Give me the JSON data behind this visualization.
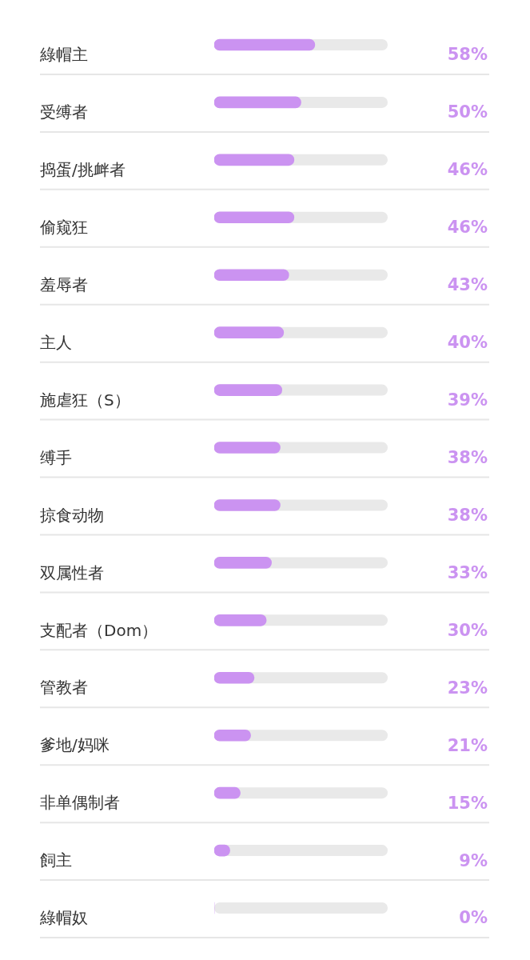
{
  "chart_data": {
    "type": "bar",
    "orientation": "horizontal",
    "categories": [
      "綠帽主",
      "受缚者",
      "捣蛋/挑衅者",
      "偷窥狂",
      "羞辱者",
      "主人",
      "施虐狂（S）",
      "缚手",
      "掠食动物",
      "双属性者",
      "支配者（Dom）",
      "管教者",
      "爹地/妈咪",
      "非单偶制者",
      "飼主",
      "綠帽奴"
    ],
    "values": [
      58,
      50,
      46,
      46,
      43,
      40,
      39,
      38,
      38,
      33,
      30,
      23,
      21,
      15,
      9,
      0
    ],
    "value_labels": [
      "58%",
      "50%",
      "46%",
      "46%",
      "43%",
      "40%",
      "39%",
      "38%",
      "38%",
      "33%",
      "30%",
      "23%",
      "21%",
      "15%",
      "9%",
      "0%"
    ],
    "color": "#cb93f1",
    "xlim": [
      0,
      100
    ],
    "tick_labels": "y",
    "grid": "y",
    "legend": false
  }
}
